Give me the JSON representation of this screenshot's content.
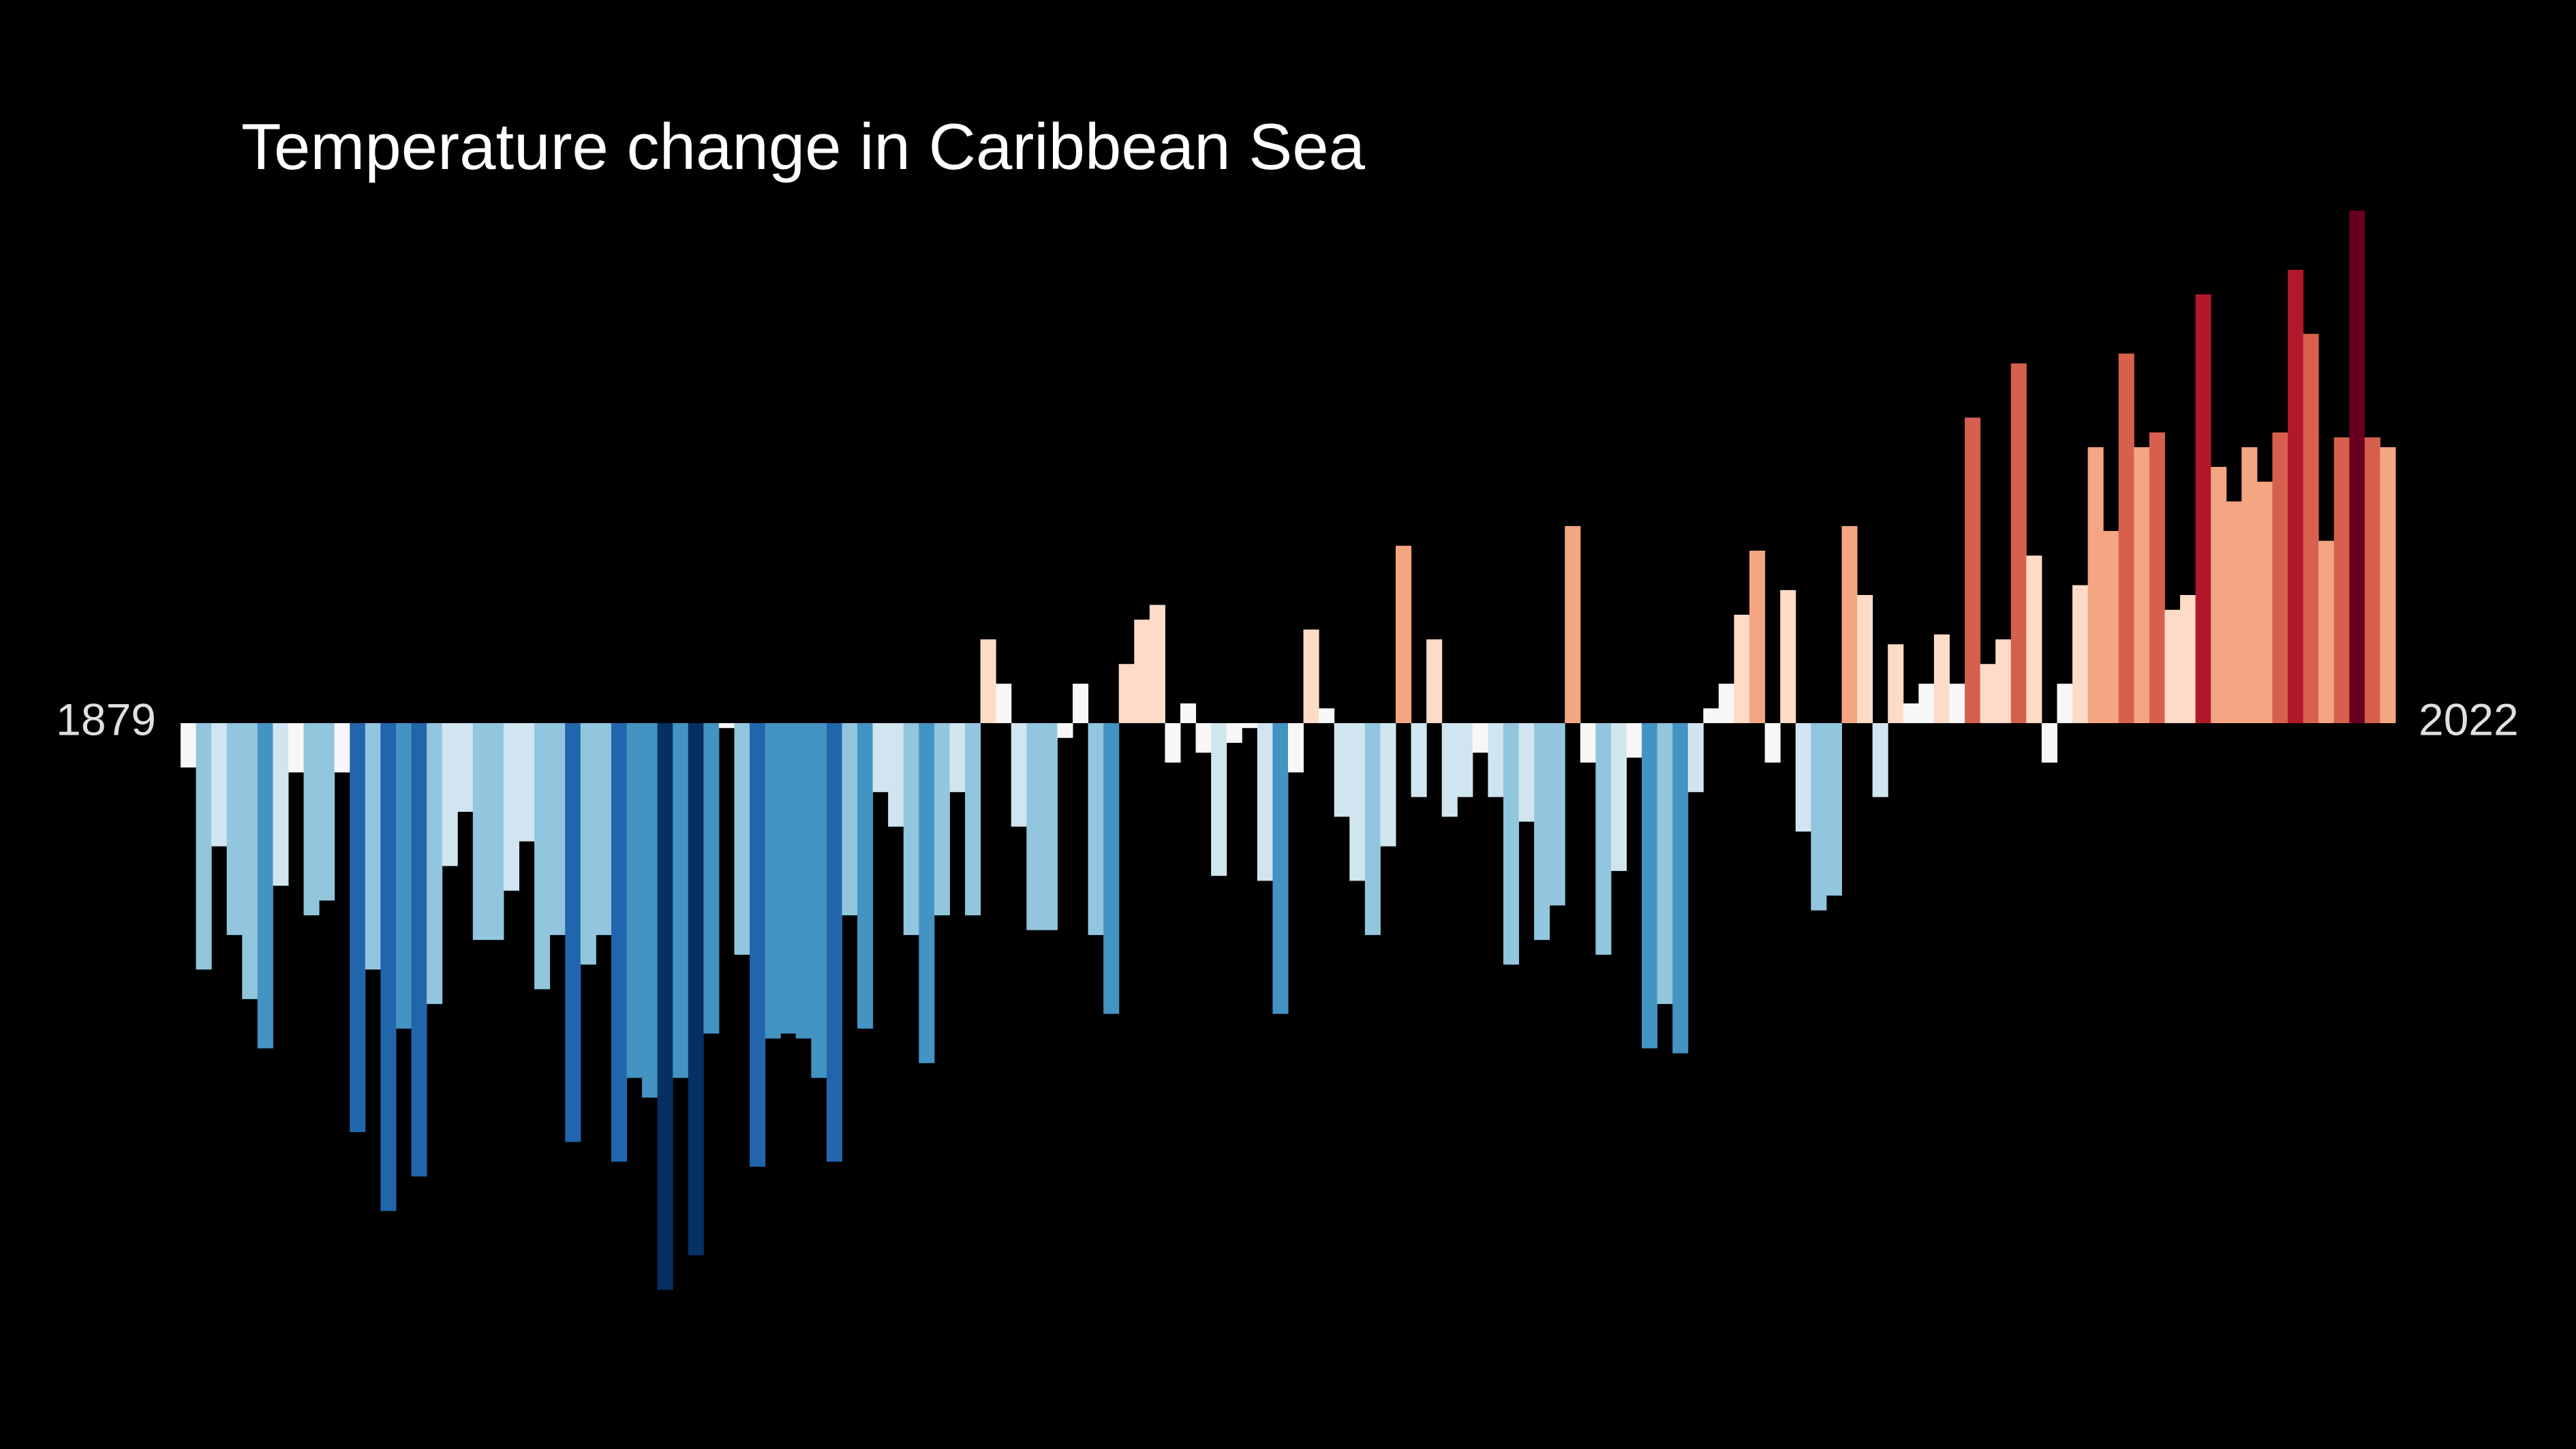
{
  "chart_data": {
    "type": "bar",
    "title": "Temperature change in Caribbean Sea",
    "categories": [
      "1879",
      null,
      null,
      null,
      null,
      null,
      null,
      null,
      null,
      null,
      null,
      null,
      null,
      null,
      null,
      null,
      null,
      null,
      null,
      null,
      null,
      null,
      null,
      null,
      null,
      null,
      null,
      null,
      null,
      null,
      null,
      null,
      null,
      null,
      null,
      null,
      null,
      null,
      null,
      null,
      null,
      null,
      null,
      null,
      null,
      null,
      null,
      null,
      null,
      null,
      null,
      null,
      null,
      null,
      null,
      null,
      null,
      null,
      null,
      null,
      null,
      null,
      null,
      null,
      null,
      null,
      null,
      null,
      null,
      null,
      null,
      null,
      null,
      null,
      null,
      null,
      null,
      null,
      null,
      null,
      null,
      null,
      null,
      null,
      null,
      null,
      null,
      null,
      null,
      null,
      null,
      null,
      null,
      null,
      null,
      null,
      null,
      null,
      null,
      null,
      null,
      null,
      null,
      null,
      null,
      null,
      null,
      null,
      null,
      null,
      null,
      null,
      null,
      null,
      null,
      null,
      null,
      null,
      null,
      null,
      null,
      null,
      null,
      null,
      null,
      null,
      null,
      null,
      null,
      null,
      null,
      null,
      null,
      null,
      null,
      null,
      null,
      null,
      null,
      null,
      null,
      null,
      null,
      "2022"
    ],
    "values": [
      -0.09,
      -0.5,
      -0.25,
      -0.43,
      -0.56,
      -0.66,
      -0.33,
      -0.1,
      -0.39,
      -0.36,
      -0.1,
      -0.83,
      -0.5,
      -0.99,
      -0.62,
      -0.92,
      -0.57,
      -0.29,
      -0.18,
      -0.44,
      -0.44,
      -0.34,
      -0.24,
      -0.54,
      -0.43,
      -0.85,
      -0.49,
      -0.43,
      -0.89,
      -0.72,
      -0.76,
      -1.15,
      -0.72,
      -1.08,
      -0.63,
      -0.01,
      -0.47,
      -0.9,
      -0.64,
      -0.63,
      -0.64,
      -0.72,
      -0.89,
      -0.39,
      -0.62,
      -0.14,
      -0.21,
      -0.43,
      -0.69,
      -0.39,
      -0.14,
      -0.39,
      0.17,
      0.08,
      -0.21,
      -0.42,
      -0.42,
      -0.03,
      0.08,
      -0.43,
      -0.59,
      0.12,
      0.21,
      0.24,
      -0.08,
      0.04,
      -0.06,
      -0.31,
      -0.04,
      -0.01,
      -0.32,
      -0.59,
      -0.1,
      0.19,
      0.03,
      -0.19,
      -0.32,
      -0.43,
      -0.25,
      0.36,
      -0.15,
      0.17,
      -0.19,
      -0.15,
      -0.06,
      -0.15,
      -0.49,
      -0.2,
      -0.44,
      -0.37,
      0.4,
      -0.08,
      -0.47,
      -0.3,
      -0.07,
      -0.66,
      -0.57,
      -0.67,
      -0.14,
      0.03,
      0.08,
      0.22,
      0.35,
      -0.08,
      0.27,
      -0.22,
      -0.38,
      -0.35,
      0.4,
      0.26,
      -0.15,
      0.16,
      0.04,
      0.08,
      0.18,
      0.08,
      0.62,
      0.12,
      0.17,
      0.73,
      0.34,
      -0.08,
      0.08,
      0.28,
      0.56,
      0.39,
      0.75,
      0.56,
      0.59,
      0.23,
      0.26,
      0.87,
      0.52,
      0.45,
      0.56,
      0.49,
      0.59,
      0.92,
      0.79,
      0.37,
      0.58,
      1.04,
      0.58,
      0.56
    ],
    "colormap": [
      "#053061",
      "#2166ac",
      "#4393c3",
      "#92c5de",
      "#d1e5f0",
      "#f7f7f7",
      "#fddbc7",
      "#f4a582",
      "#d6604d",
      "#b2182b",
      "#67001f"
    ]
  }
}
